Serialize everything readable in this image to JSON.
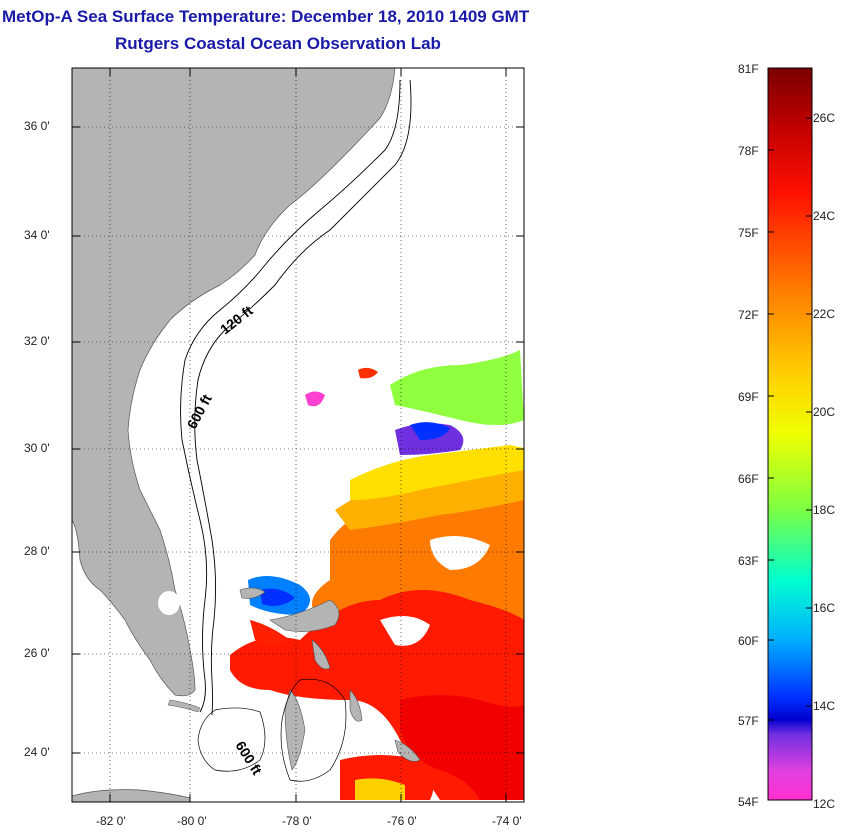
{
  "title": {
    "line1": "MetOp-A Sea Surface Temperature:  December 18, 2010 1409 GMT",
    "line2": "Rutgers Coastal Ocean Observation Lab"
  },
  "map": {
    "lat_labels": [
      "36 0'",
      "34 0'",
      "32 0'",
      "30 0'",
      "28 0'",
      "26 0'",
      "24 0'"
    ],
    "lon_labels": [
      "-82 0'",
      "-80 0'",
      "-78 0'",
      "-76 0'",
      "-74 0'"
    ],
    "contour_labels": {
      "c120": "120 ft",
      "c600a": "600 ft",
      "c600b": "600 ft"
    },
    "land_color": "#b4b4b4"
  },
  "colorbar": {
    "fahrenheit": [
      "81F",
      "78F",
      "75F",
      "72F",
      "69F",
      "66F",
      "63F",
      "60F",
      "57F",
      "54F"
    ],
    "celsius": [
      "26C",
      "24C",
      "22C",
      "20C",
      "18C",
      "16C",
      "14C",
      "12C"
    ]
  }
}
